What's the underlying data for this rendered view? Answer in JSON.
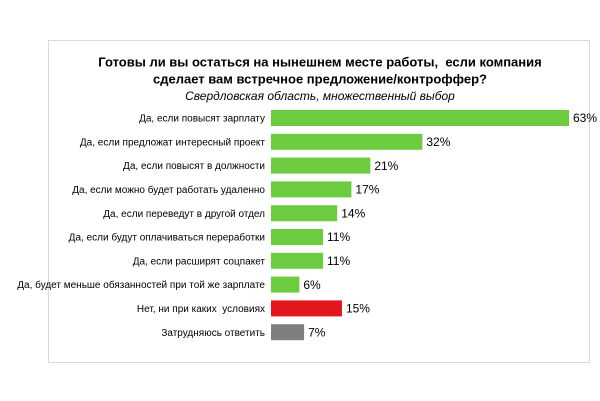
{
  "chart_data": {
    "type": "bar",
    "orientation": "horizontal",
    "title": [
      "Готовы ли вы остаться на нынешнем месте работы,  если компания",
      "сделает вам встречное предложение/контроффер?"
    ],
    "subtitle": "Свердловская область, множественный выбор",
    "categories": [
      "Да, если повысят зарплату",
      "Да, если предложат интересный проект",
      "Да, если повысят в должности",
      "Да, если можно будет работать удаленно",
      "Да, если переведут в другой отдел",
      "Да, если будут оплачиваться переработки",
      "Да, если расширят соцпакет",
      "Да, будет меньше обязанностей при той же зарплате",
      "Нет, ни при каких  условиях",
      "Затрудняюсь ответить"
    ],
    "values": [
      63,
      32,
      21,
      17,
      14,
      11,
      11,
      6,
      15,
      7
    ],
    "value_labels": [
      "63%",
      "32%",
      "21%",
      "17%",
      "14%",
      "11%",
      "11%",
      "6%",
      "15%",
      "7%"
    ],
    "colors": [
      "#6dcb3f",
      "#6dcb3f",
      "#6dcb3f",
      "#6dcb3f",
      "#6dcb3f",
      "#6dcb3f",
      "#6dcb3f",
      "#6dcb3f",
      "#e3161b",
      "#7f7f7f"
    ]
  }
}
